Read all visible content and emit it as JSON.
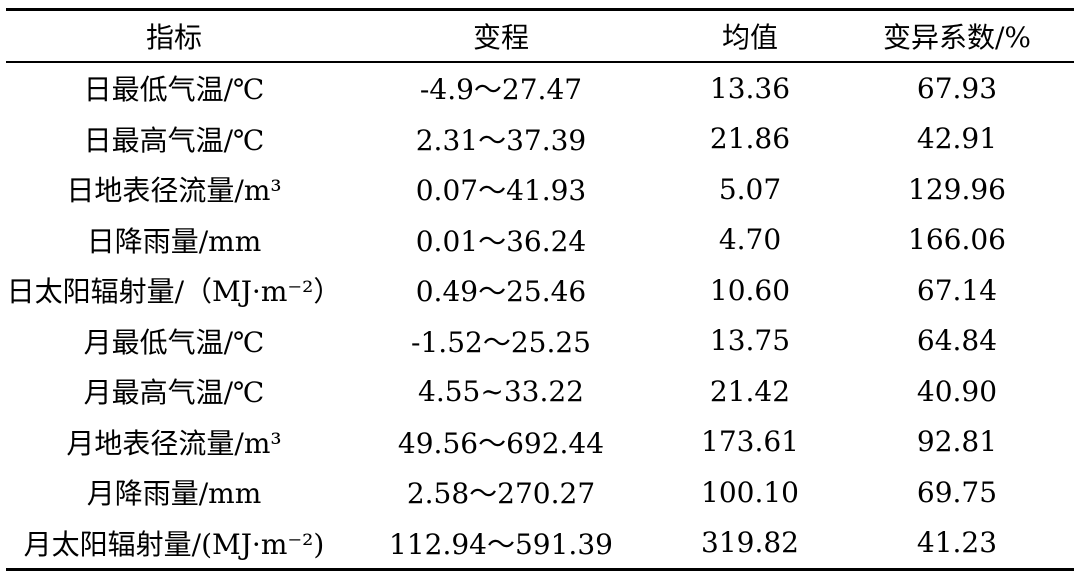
{
  "table": {
    "headers": [
      "指标",
      "变程",
      "均值",
      "变异系数/%"
    ],
    "rows": [
      [
        "日最低气温/℃",
        "-4.9～27.47",
        "13.36",
        "67.93"
      ],
      [
        "日最高气温/℃",
        "2.31～37.39",
        "21.86",
        "42.91"
      ],
      [
        "日地表径流量/m³",
        "0.07～41.93",
        "5.07",
        "129.96"
      ],
      [
        "日降雨量/mm",
        "0.01～36.24",
        "4.70",
        "166.06"
      ],
      [
        "日太阳辐射量/（MJ·m⁻²）",
        "0.49～25.46",
        "10.60",
        "67.14"
      ],
      [
        "月最低气温/℃",
        "-1.52～25.25",
        "13.75",
        "64.84"
      ],
      [
        "月最高气温/℃",
        "4.55~33.22",
        "21.42",
        "40.90"
      ],
      [
        "月地表径流量/m³",
        "49.56～692.44",
        "173.61",
        "92.81"
      ],
      [
        "月降雨量/mm",
        "2.58～270.27",
        "100.10",
        "69.75"
      ],
      [
        "月太阳辐射量/(MJ·m⁻²)",
        "112.94～591.39",
        "319.82",
        "41.23"
      ]
    ]
  }
}
